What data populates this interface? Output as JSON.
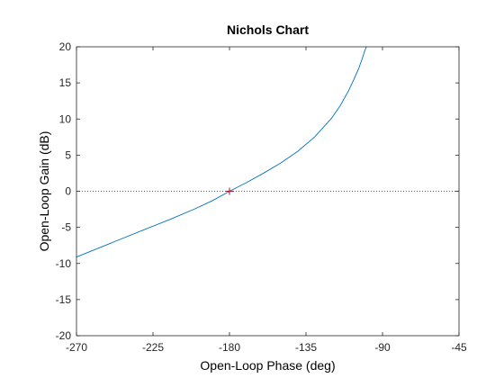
{
  "chart_data": {
    "type": "line",
    "title": "Nichols Chart",
    "xlabel": "Open-Loop Phase (deg)",
    "ylabel": "Open-Loop Gain (dB)",
    "xlim": [
      -270,
      -45
    ],
    "ylim": [
      -20,
      20
    ],
    "xticks": [
      -270,
      -225,
      -180,
      -135,
      -90,
      -45
    ],
    "yticks": [
      -20,
      -15,
      -10,
      -5,
      0,
      5,
      10,
      15,
      20
    ],
    "xtick_labels": [
      "-270",
      "-225",
      "-180",
      "-135",
      "-90",
      "-45"
    ],
    "ytick_labels": [
      "-20",
      "-15",
      "-10",
      "-5",
      "0",
      "5",
      "10",
      "15",
      "20"
    ],
    "grid": false,
    "reference_line": {
      "y": 0,
      "style": "dotted"
    },
    "critical_point": {
      "x": -180,
      "y": 0,
      "marker": "+"
    },
    "series": [
      {
        "color": "#0072bd",
        "x": [
          -270,
          -250,
          -230,
          -215,
          -200,
          -190,
          -180,
          -170,
          -160,
          -150,
          -140,
          -130,
          -120,
          -115,
          -110,
          -107,
          -104,
          -102,
          -100.5,
          -99.5
        ],
        "y": [
          -9.1,
          -7.2,
          -5.3,
          -3.9,
          -2.4,
          -1.3,
          0.0,
          1.2,
          2.5,
          3.9,
          5.5,
          7.5,
          10.1,
          11.8,
          13.9,
          15.4,
          17.0,
          18.3,
          19.4,
          20.0
        ]
      }
    ]
  },
  "colors": {
    "axes": "#262626",
    "curve": "#0072bd",
    "critical_marker": "#a2142f",
    "reference_line": "#262626"
  }
}
